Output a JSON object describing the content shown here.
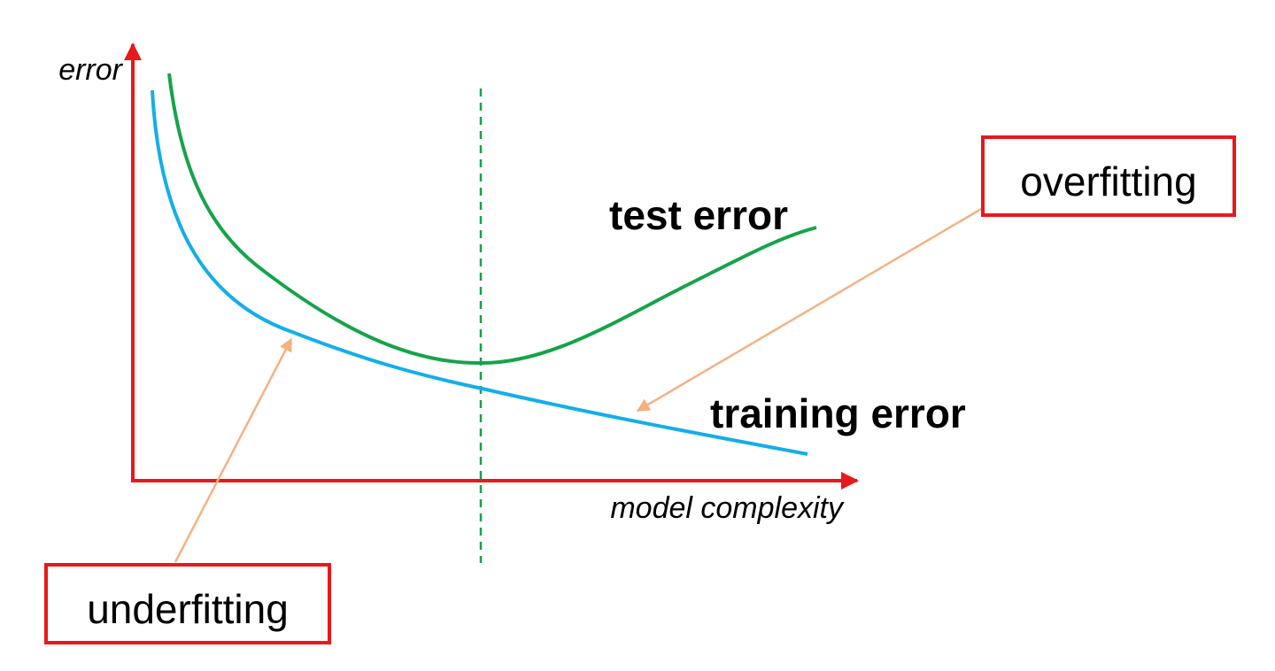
{
  "axes": {
    "y_label": "error",
    "x_label": "model complexity"
  },
  "curves": {
    "test_label": "test error",
    "training_label": "training error"
  },
  "callouts": {
    "overfitting": "overfitting",
    "underfitting": "underfitting"
  }
}
